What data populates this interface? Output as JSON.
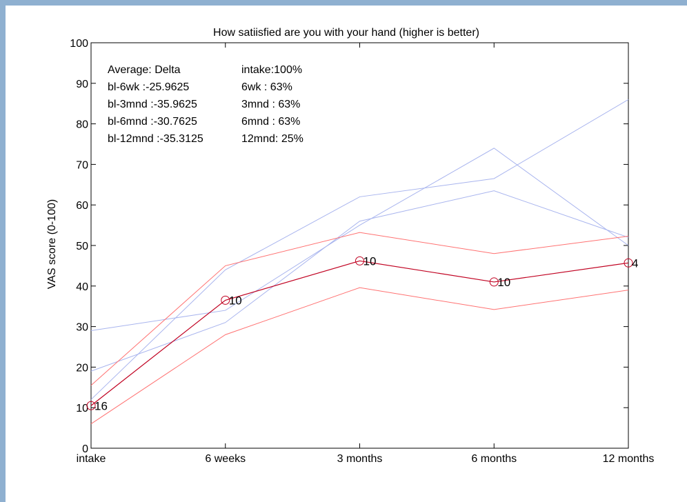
{
  "chart_data": {
    "type": "line",
    "title": "How satiisfied are you with your hand (higher is better)",
    "xlabel": "",
    "ylabel": "VAS score (0-100)",
    "categories": [
      "intake",
      "6 weeks",
      "3 months",
      "6 months",
      "12 months"
    ],
    "ylim": [
      0,
      100
    ],
    "yticks": [
      0,
      10,
      20,
      30,
      40,
      50,
      60,
      70,
      80,
      90,
      100
    ],
    "grid": false,
    "colors": {
      "mean": "#c00020",
      "ci": "#ff7070",
      "individual": "#a8b4ee"
    },
    "mean": [
      10.5,
      36.5,
      46.2,
      41.0,
      45.7
    ],
    "ci_upper": [
      15.5,
      45.0,
      53.2,
      48.0,
      52.3
    ],
    "ci_lower": [
      6.0,
      28.0,
      39.6,
      34.2,
      39.0
    ],
    "individual": [
      [
        29.0,
        34.0,
        55.0,
        74.0,
        50.0
      ],
      [
        19.0,
        31.0,
        56.0,
        63.5,
        52.0
      ],
      [
        12.0,
        44.0,
        62.0,
        66.5,
        86.0
      ]
    ],
    "point_labels": [
      "16",
      "10",
      "10",
      "10",
      "4"
    ],
    "annotation": [
      [
        "Average: Delta",
        "intake:100%"
      ],
      [
        "bl-6wk   :-25.9625",
        "6wk   : 63%"
      ],
      [
        "bl-3mnd :-35.9625",
        "3mnd : 63%"
      ],
      [
        "bl-6mnd :-30.7625",
        "6mnd : 63%"
      ],
      [
        "bl-12mnd :-35.3125",
        "12mnd: 25%"
      ]
    ]
  }
}
